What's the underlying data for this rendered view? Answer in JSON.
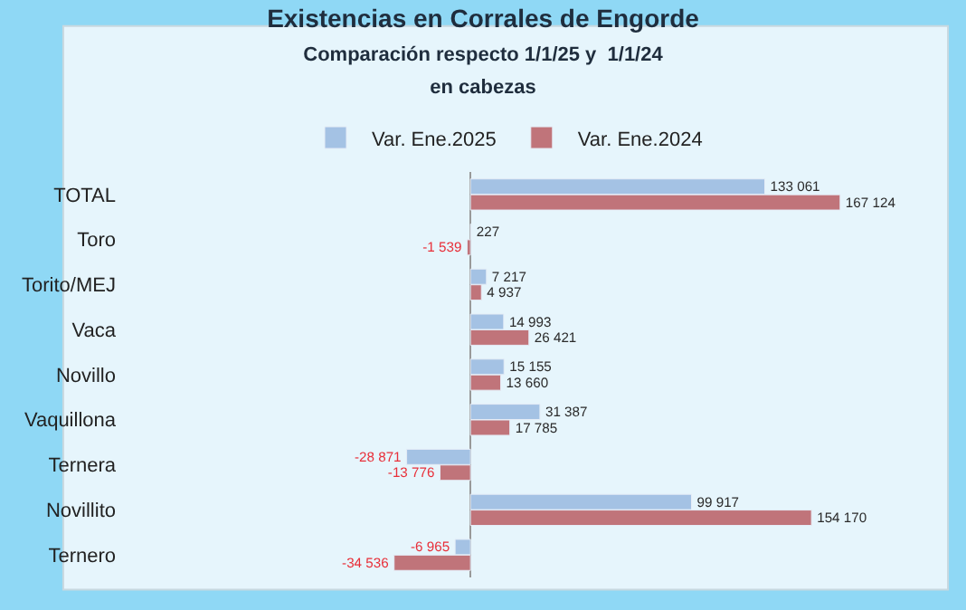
{
  "chart_data": {
    "type": "bar",
    "orientation": "horizontal",
    "title": "Existencias en Corrales de Engorde",
    "subtitle": "Comparación respecto 1/1/25 y  1/1/24\nen cabezas",
    "categories": [
      "TOTAL",
      "Toro",
      "Torito/MEJ",
      "Vaca",
      "Novillo",
      "Vaquillona",
      "Ternera",
      "Novillito",
      "Ternero"
    ],
    "series": [
      {
        "name": "Var. Ene.2025",
        "color": "#a4c2e4",
        "values": [
          133061,
          227,
          7217,
          14993,
          15155,
          31387,
          -28871,
          99917,
          -6965
        ],
        "value_labels": [
          "133 061",
          "227",
          "7 217",
          "14 993",
          "15 155",
          "31 387",
          "-28 871",
          "99 917",
          "-6 965"
        ]
      },
      {
        "name": "Var. Ene.2024",
        "color": "#c0747a",
        "values": [
          167124,
          -1539,
          4937,
          26421,
          13660,
          17785,
          -13776,
          154170,
          -34536
        ],
        "value_labels": [
          "167 124",
          "-1 539",
          "4 937",
          "26 421",
          "13 660",
          "17 785",
          "-13 776",
          "154 170",
          "-34 536"
        ]
      }
    ],
    "legend": "top",
    "tick_labels": "y",
    "grid": false
  }
}
